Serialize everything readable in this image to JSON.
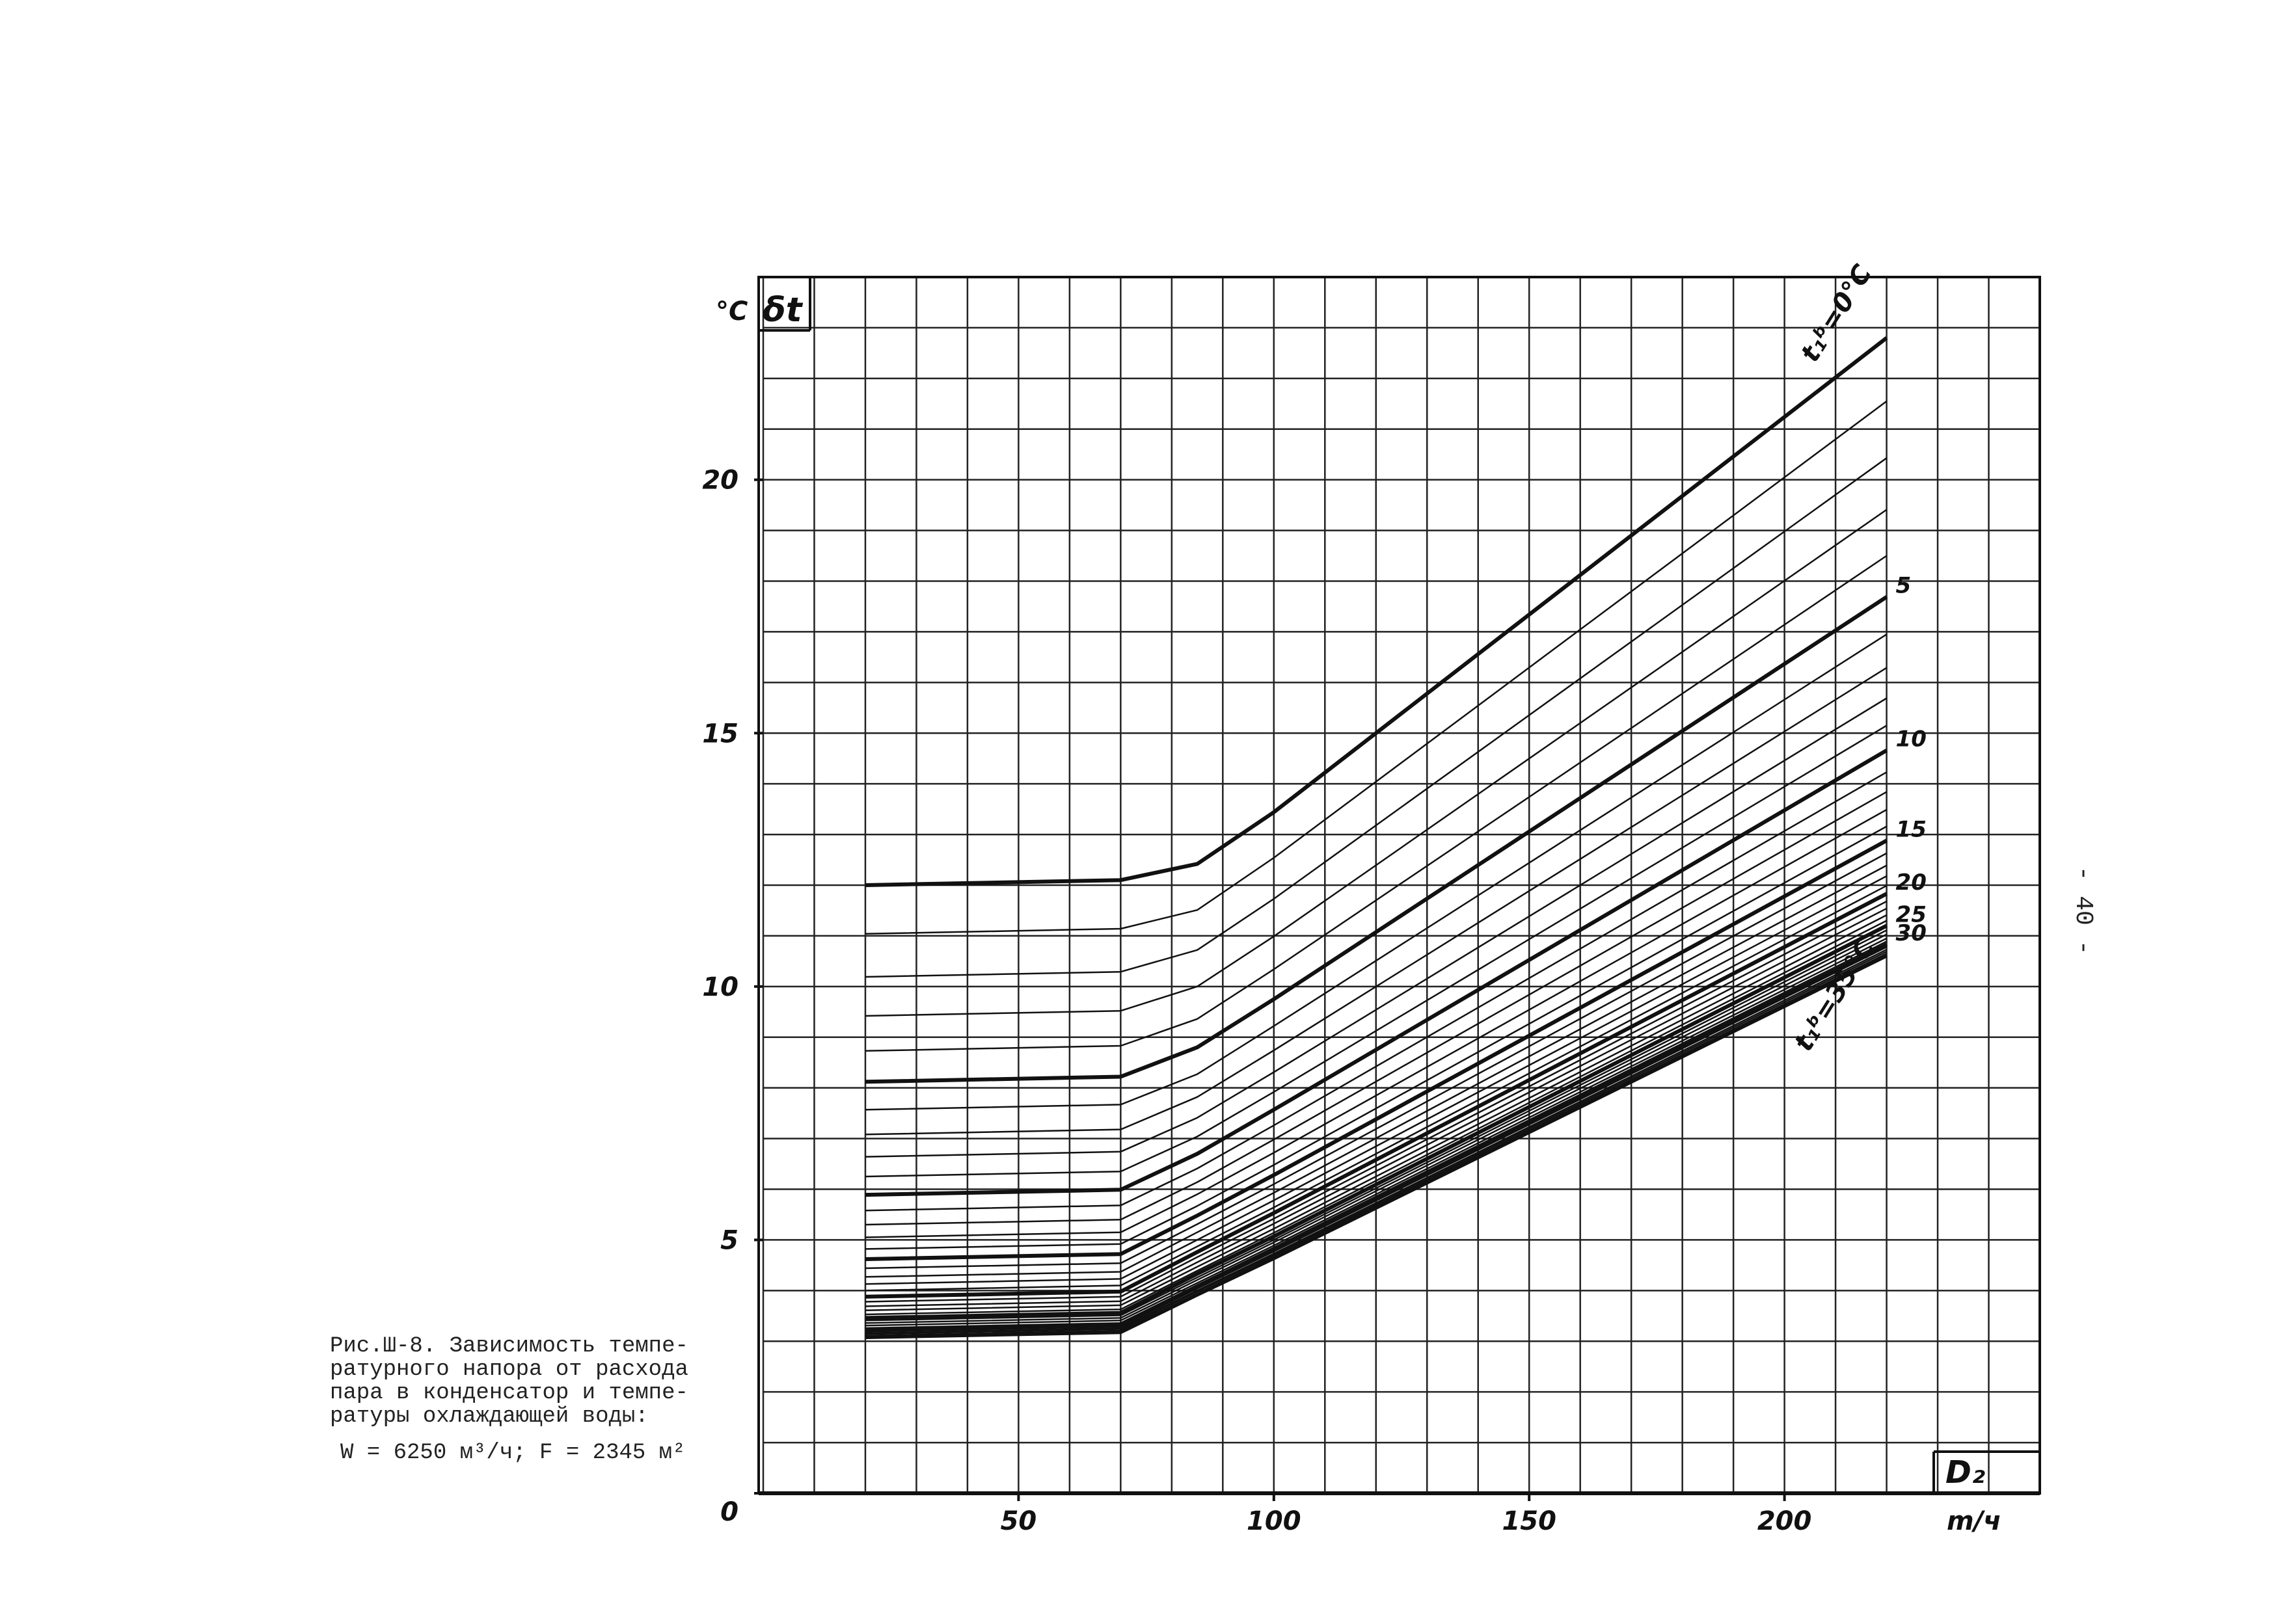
{
  "chart_data": {
    "type": "line",
    "y_label_unit": "°C",
    "y_label": "δt",
    "x_label": "D₂",
    "x_label_unit": "m/ч",
    "xlim": [
      0,
      250
    ],
    "ylim": [
      0,
      24
    ],
    "xticks": [
      50,
      100,
      150,
      200
    ],
    "yticks": [
      0,
      5,
      10,
      15,
      20
    ],
    "xgrid": [
      0,
      10,
      20,
      30,
      40,
      50,
      60,
      70,
      80,
      90,
      100,
      110,
      120,
      130,
      140,
      150,
      160,
      170,
      180,
      190,
      200,
      210,
      220,
      230,
      240,
      250
    ],
    "ygrid": [
      0,
      1,
      2,
      3,
      4,
      5,
      6,
      7,
      8,
      9,
      10,
      11,
      12,
      13,
      14,
      15,
      16,
      17,
      18,
      19,
      20,
      21,
      22,
      23,
      24
    ],
    "color": "#111111",
    "x": [
      20,
      70,
      85,
      100,
      220
    ],
    "series": [
      {
        "name": "t₁ᵇ=0°C",
        "bold": true,
        "values": [
          12.0,
          12.1,
          12.42,
          13.44,
          22.8
        ]
      },
      {
        "values": [
          11.04,
          11.14,
          11.51,
          12.54,
          21.55
        ]
      },
      {
        "values": [
          10.19,
          10.29,
          10.72,
          11.73,
          20.43
        ]
      },
      {
        "values": [
          9.42,
          9.52,
          10.0,
          10.99,
          19.41
        ]
      },
      {
        "values": [
          8.73,
          8.83,
          9.36,
          10.34,
          18.5
        ]
      },
      {
        "name": "5",
        "bold": true,
        "values": [
          8.12,
          8.22,
          8.8,
          9.75,
          17.69
        ]
      },
      {
        "values": [
          7.57,
          7.67,
          8.27,
          9.22,
          16.95
        ]
      },
      {
        "values": [
          7.08,
          7.18,
          7.82,
          8.74,
          16.29
        ]
      },
      {
        "values": [
          6.64,
          6.74,
          7.41,
          8.31,
          15.69
        ]
      },
      {
        "values": [
          6.25,
          6.35,
          7.04,
          7.92,
          15.15
        ]
      },
      {
        "name": "10",
        "bold": true,
        "values": [
          5.89,
          5.99,
          6.7,
          7.57,
          14.66
        ]
      },
      {
        "values": [
          5.58,
          5.68,
          6.41,
          7.26,
          14.23
        ]
      },
      {
        "values": [
          5.3,
          5.4,
          6.14,
          6.98,
          13.84
        ]
      },
      {
        "values": [
          5.05,
          5.15,
          5.9,
          6.72,
          13.49
        ]
      },
      {
        "values": [
          4.82,
          4.92,
          5.67,
          6.48,
          13.16
        ]
      },
      {
        "name": "15",
        "bold": true,
        "values": [
          4.62,
          4.72,
          5.48,
          6.28,
          12.88
        ]
      },
      {
        "values": [
          4.44,
          4.54,
          5.31,
          6.1,
          12.63
        ]
      },
      {
        "values": [
          4.27,
          4.37,
          5.15,
          5.93,
          12.39
        ]
      },
      {
        "values": [
          4.13,
          4.23,
          5.0,
          5.78,
          12.18
        ]
      },
      {
        "values": [
          4.0,
          4.1,
          4.87,
          5.64,
          11.99
        ]
      },
      {
        "name": "20",
        "bold": true,
        "values": [
          3.88,
          3.98,
          4.76,
          5.53,
          11.83
        ]
      },
      {
        "values": [
          3.78,
          3.88,
          4.66,
          5.42,
          11.68
        ]
      },
      {
        "values": [
          3.69,
          3.79,
          4.56,
          5.32,
          11.54
        ]
      },
      {
        "values": [
          3.61,
          3.71,
          4.47,
          5.22,
          11.41
        ]
      },
      {
        "values": [
          3.53,
          3.63,
          4.39,
          5.14,
          11.3
        ]
      },
      {
        "name": "25",
        "bold": true,
        "values": [
          3.46,
          3.56,
          4.33,
          5.07,
          11.2
        ]
      },
      {
        "values": [
          3.41,
          3.51,
          4.26,
          5.0,
          11.11
        ]
      },
      {
        "values": [
          3.36,
          3.46,
          4.21,
          4.95,
          11.03
        ]
      },
      {
        "values": [
          3.31,
          3.41,
          4.15,
          4.89,
          10.95
        ]
      },
      {
        "values": [
          3.26,
          3.36,
          4.11,
          4.85,
          10.89
        ]
      },
      {
        "name": "30",
        "bold": true,
        "values": [
          3.23,
          3.33,
          4.07,
          4.8,
          10.83
        ]
      },
      {
        "values": [
          3.19,
          3.29,
          4.04,
          4.77,
          10.78
        ]
      },
      {
        "values": [
          3.16,
          3.26,
          4.0,
          4.73,
          10.73
        ]
      },
      {
        "values": [
          3.14,
          3.24,
          3.98,
          4.7,
          10.69
        ]
      },
      {
        "values": [
          3.11,
          3.21,
          3.94,
          4.67,
          10.65
        ]
      },
      {
        "name": "t₁ᵇ=35°C",
        "bold": true,
        "values": [
          3.08,
          3.18,
          3.92,
          4.64,
          10.61
        ]
      }
    ]
  },
  "caption": [
    "Рис.Ш-8. Зависимость темпе-",
    "ратурного напора от расхода",
    "пара в конденсатор и темпе-",
    "ратуры охлаждающей воды:",
    "W = 6250 м³/ч; F = 2345 м²"
  ],
  "page_number": "- 40 -"
}
